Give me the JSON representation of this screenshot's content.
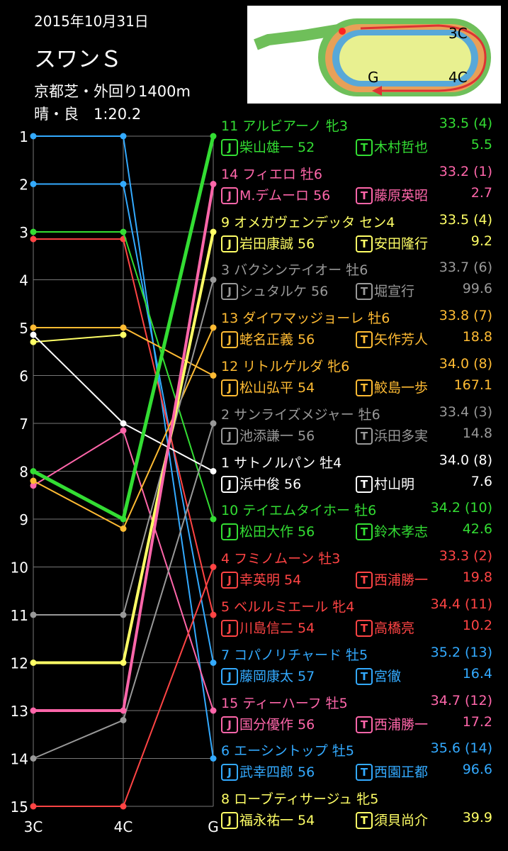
{
  "header": {
    "date": "2015年10月31日",
    "race": "スワンＳ",
    "course": "京都芝・外回り1400m",
    "condition": "晴・良　1:20.2"
  },
  "course_map": {
    "label_3c": "3C",
    "label_4c": "4C",
    "label_goal": "G"
  },
  "badges": {
    "jockey": "J",
    "trainer": "T"
  },
  "chart_data": {
    "type": "line",
    "title": "",
    "x": [
      "3C",
      "4C",
      "G"
    ],
    "ylim": [
      15,
      1
    ],
    "y_ticks": [
      "1",
      "2",
      "3",
      "4",
      "5",
      "6",
      "7",
      "8",
      "9",
      "10",
      "11",
      "12",
      "13",
      "14",
      "15"
    ],
    "grid": true,
    "series": [
      {
        "number": "11",
        "name": "アルビアーノ",
        "sex_age": "牝3",
        "last3f": "33.5 (4)",
        "jockey": "柴山雄一 52",
        "trainer": "木村哲也",
        "odds": "5.5",
        "color": "#33dd33",
        "positions": [
          8,
          9,
          1
        ]
      },
      {
        "number": "14",
        "name": "フィエロ",
        "sex_age": "牡6",
        "last3f": "33.2 (1)",
        "jockey": "M.デムーロ 56",
        "trainer": "藤原英昭",
        "odds": "2.7",
        "color": "#ff66aa",
        "positions": [
          13,
          13,
          2
        ]
      },
      {
        "number": "9",
        "name": "オメガヴェンデッタ",
        "sex_age": "セン4",
        "last3f": "33.5 (4)",
        "jockey": "岩田康誠 56",
        "trainer": "安田隆行",
        "odds": "9.2",
        "color": "#ffff66",
        "positions": [
          12,
          12,
          3
        ]
      },
      {
        "number": "3",
        "name": "バクシンテイオー",
        "sex_age": "牡6",
        "last3f": "33.7 (6)",
        "jockey": "シュタルケ 56",
        "trainer": "堀宣行",
        "odds": "99.6",
        "color": "#999999",
        "positions": [
          11,
          11,
          4
        ]
      },
      {
        "number": "13",
        "name": "ダイワマッジョーレ",
        "sex_age": "牡6",
        "last3f": "33.8 (7)",
        "jockey": "蛯名正義 56",
        "trainer": "矢作芳人",
        "odds": "18.8",
        "color": "#ffbb33",
        "positions": [
          8.2,
          9.2,
          5
        ]
      },
      {
        "number": "12",
        "name": "リトルゲルダ",
        "sex_age": "牝6",
        "last3f": "34.0 (8)",
        "jockey": "松山弘平 54",
        "trainer": "鮫島一歩",
        "odds": "167.1",
        "color": "#ffbb33",
        "positions": [
          5,
          5,
          6
        ]
      },
      {
        "number": "2",
        "name": "サンライズメジャー",
        "sex_age": "牡6",
        "last3f": "33.4 (3)",
        "jockey": "池添謙一 56",
        "trainer": "浜田多実",
        "odds": "14.8",
        "color": "#999999",
        "positions": [
          14,
          13.2,
          7
        ]
      },
      {
        "number": "1",
        "name": "サトノルパン",
        "sex_age": "牡4",
        "last3f": "34.0 (8)",
        "jockey": "浜中俊 56",
        "trainer": "村山明",
        "odds": "7.6",
        "color": "#ffffff",
        "positions": [
          5.15,
          7,
          8
        ]
      },
      {
        "number": "10",
        "name": "テイエムタイホー",
        "sex_age": "牡6",
        "last3f": "34.2 (10)",
        "jockey": "松田大作 56",
        "trainer": "鈴木孝志",
        "odds": "42.6",
        "color": "#33dd33",
        "positions": [
          3,
          3,
          9
        ]
      },
      {
        "number": "4",
        "name": "フミノムーン",
        "sex_age": "牡3",
        "last3f": "33.3 (2)",
        "jockey": "幸英明 54",
        "trainer": "西浦勝一",
        "odds": "19.8",
        "color": "#ff4444",
        "positions": [
          15,
          15,
          10
        ]
      },
      {
        "number": "5",
        "name": "ベルルミエール",
        "sex_age": "牝4",
        "last3f": "34.4 (11)",
        "jockey": "川島信二 54",
        "trainer": "高橋亮",
        "odds": "10.2",
        "color": "#ff4444",
        "positions": [
          3.15,
          3.15,
          11
        ]
      },
      {
        "number": "7",
        "name": "コパノリチャード",
        "sex_age": "牡5",
        "last3f": "35.2 (13)",
        "jockey": "藤岡康太 57",
        "trainer": "宮徹",
        "odds": "16.4",
        "color": "#33aaff",
        "positions": [
          2,
          2,
          12
        ]
      },
      {
        "number": "15",
        "name": "ティーハーフ",
        "sex_age": "牡5",
        "last3f": "34.7 (12)",
        "jockey": "国分優作 56",
        "trainer": "西浦勝一",
        "odds": "17.2",
        "color": "#ff66aa",
        "positions": [
          8.3,
          7.15,
          13
        ]
      },
      {
        "number": "6",
        "name": "エーシントップ",
        "sex_age": "牡5",
        "last3f": "35.6 (14)",
        "jockey": "武幸四郎 56",
        "trainer": "西園正都",
        "odds": "96.6",
        "color": "#33aaff",
        "positions": [
          1,
          1,
          14
        ]
      },
      {
        "number": "8",
        "name": "ローブティサージュ",
        "sex_age": "牝5",
        "last3f": "",
        "jockey": "福永祐一 54",
        "trainer": "須貝尚介",
        "odds": "39.9",
        "color": "#ffff66",
        "positions": [
          5.3,
          5.15,
          null
        ]
      }
    ]
  }
}
